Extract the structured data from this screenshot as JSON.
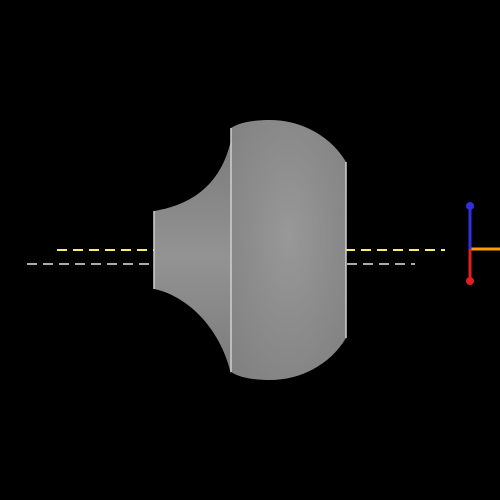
{
  "viewport": {
    "background": "#000000"
  },
  "model": {
    "fill_color": "#8a8a8a",
    "edge_color": "#d0d0d0"
  },
  "guides": {
    "yellow_color": "#f5f066",
    "white_color": "#e6e6e6"
  },
  "axis_gizmo": {
    "x_axis_color": "#ff9c00",
    "y_axis_color": "#3030e0",
    "z_axis_color": "#e02020",
    "icon": "xyz-axis-gizmo-icon"
  }
}
